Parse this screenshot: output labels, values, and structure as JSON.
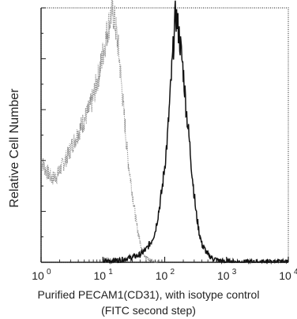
{
  "chart_data": {
    "type": "line",
    "title": "",
    "xlabel_line1": "Purified PECAM1(CD31), with isotype control",
    "xlabel_line2": "(FITC second step)",
    "ylabel": "Relative Cell Number",
    "x_scale": "log",
    "xlim": [
      1,
      10000
    ],
    "ylim": [
      0,
      100
    ],
    "x_ticks": [
      {
        "value": 1,
        "label": "10",
        "exp": "0"
      },
      {
        "value": 10,
        "label": "10",
        "exp": "1"
      },
      {
        "value": 100,
        "label": "10",
        "exp": "2"
      },
      {
        "value": 1000,
        "label": "10",
        "exp": "3"
      },
      {
        "value": 10000,
        "label": "10",
        "exp": "4"
      }
    ],
    "grid": false,
    "legend": "none",
    "series": [
      {
        "style": "dotted",
        "color": "#8a8a8a",
        "x": [
          1,
          1.2,
          1.5,
          1.8,
          2.2,
          2.7,
          3.3,
          4,
          5,
          6,
          7,
          8,
          9,
          10,
          11,
          12,
          13,
          14,
          15,
          16,
          18,
          20,
          22,
          25,
          30,
          35,
          40,
          45,
          50,
          55,
          60,
          70,
          80
        ],
        "values": [
          40,
          36,
          33,
          34,
          38,
          42,
          47,
          51,
          56,
          60,
          65,
          71,
          76,
          82,
          87,
          92,
          95,
          99,
          97,
          93,
          83,
          70,
          58,
          42,
          27,
          15,
          8,
          4,
          2,
          1,
          0.5,
          0.2,
          0
        ]
      },
      {
        "style": "solid",
        "color": "#111111",
        "x": [
          10,
          20,
          30,
          40,
          50,
          60,
          70,
          80,
          90,
          100,
          110,
          120,
          130,
          140,
          150,
          160,
          170,
          180,
          200,
          220,
          250,
          280,
          320,
          360,
          400,
          500,
          600,
          800,
          1000,
          2000,
          10000
        ],
        "values": [
          0.3,
          1,
          2,
          3,
          5,
          8,
          12,
          20,
          28,
          38,
          48,
          62,
          75,
          87,
          98,
          94,
          90,
          85,
          75,
          62,
          48,
          34,
          20,
          12,
          7,
          3,
          1.5,
          0.5,
          0.2,
          0.1,
          0.1
        ]
      }
    ]
  }
}
